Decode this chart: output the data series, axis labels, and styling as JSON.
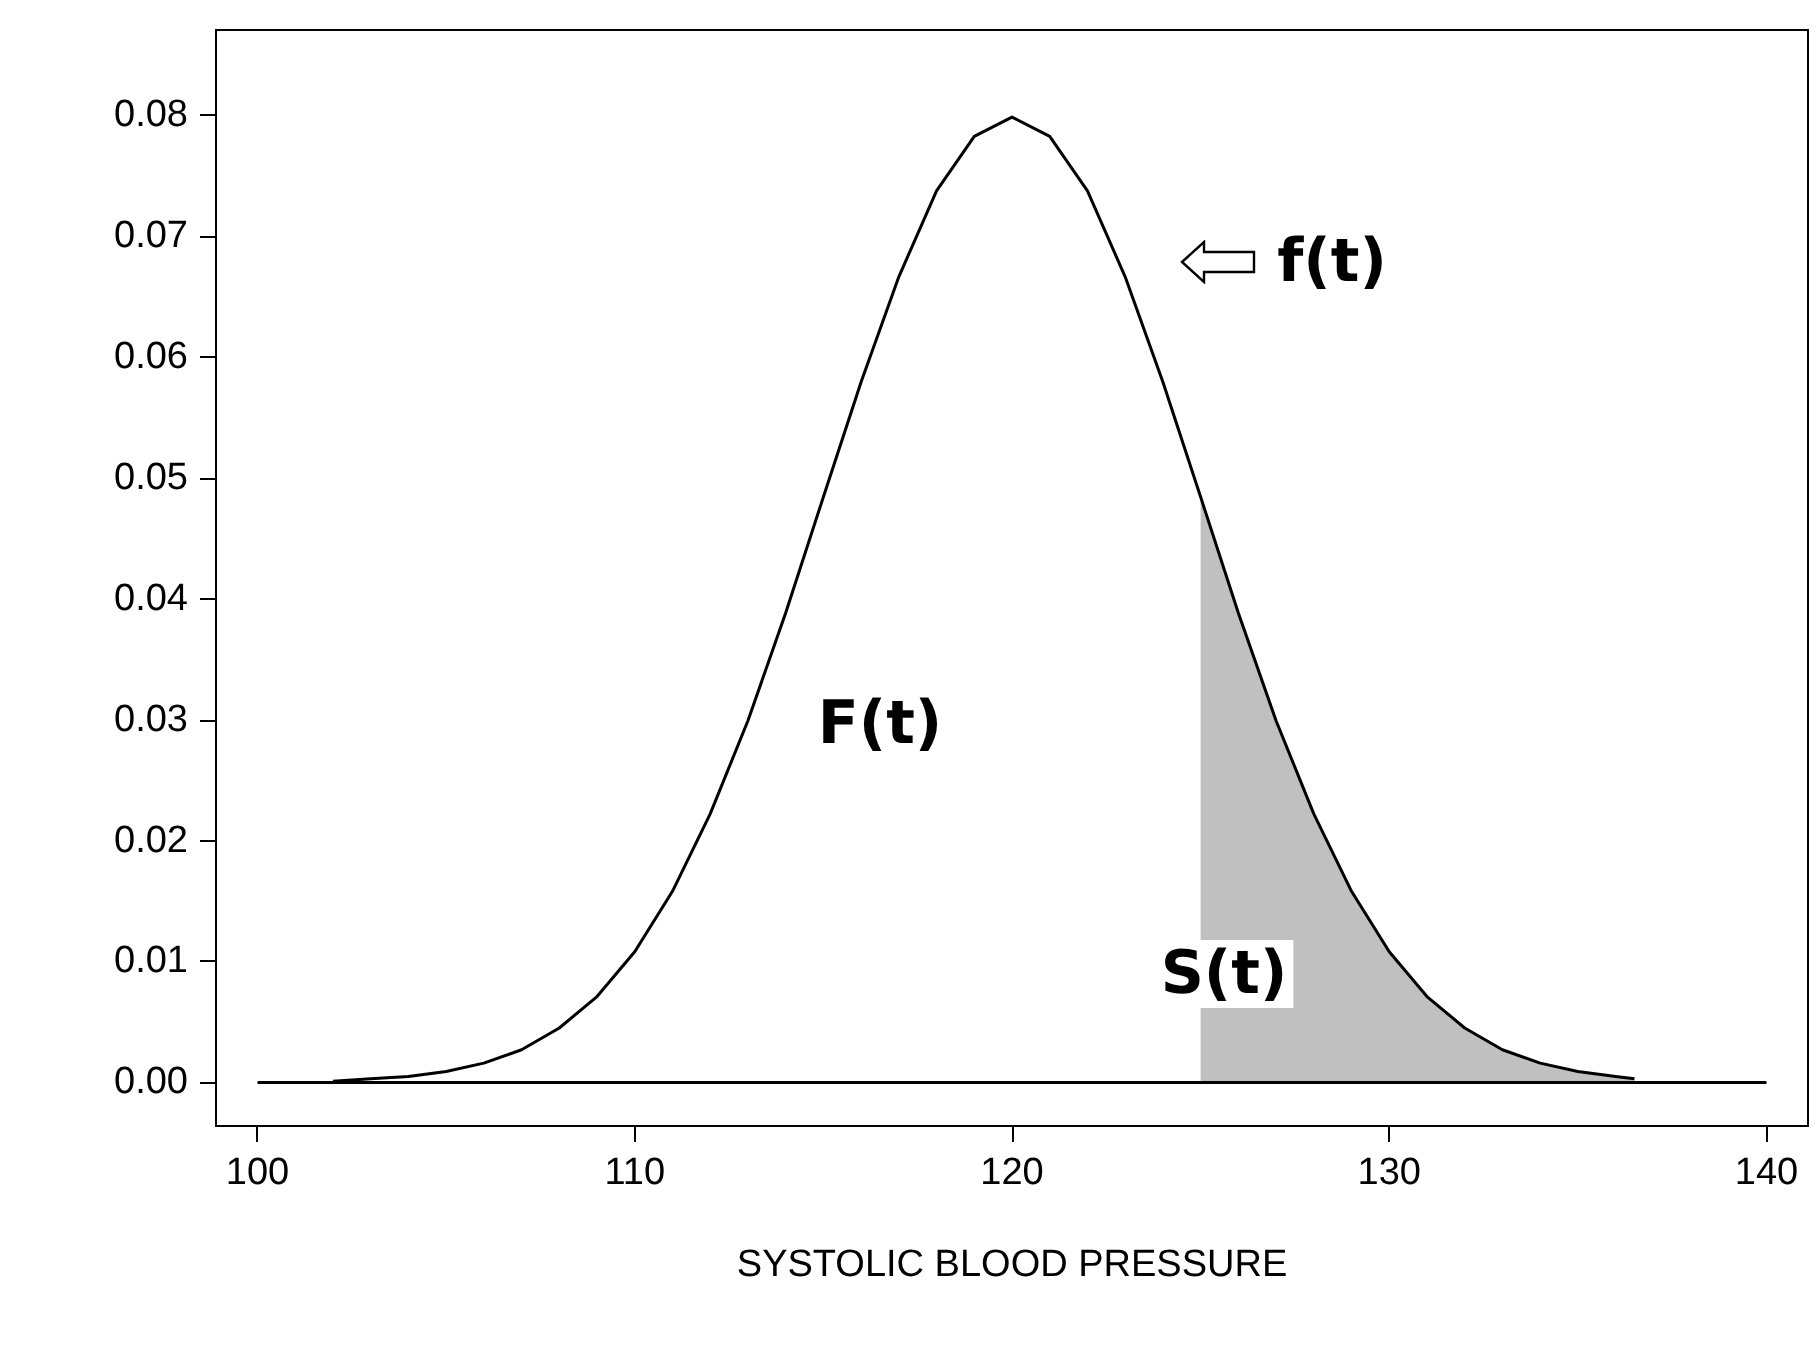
{
  "chart_data": {
    "type": "line",
    "xlabel": "SYSTOLIC BLOOD PRESSURE",
    "xlim": [
      98.9,
      141.1
    ],
    "ylim": [
      -0.0036,
      0.087
    ],
    "xticks": [
      100,
      110,
      120,
      130,
      140
    ],
    "yticks": [
      {
        "value": 0,
        "label": "0.00"
      },
      {
        "value": 0.01,
        "label": "0.01"
      },
      {
        "value": 0.02,
        "label": "0.02"
      },
      {
        "value": 0.03,
        "label": "0.03"
      },
      {
        "value": 0.04,
        "label": "0.04"
      },
      {
        "value": 0.05,
        "label": "0.05"
      },
      {
        "value": 0.06,
        "label": "0.06"
      },
      {
        "value": 0.07,
        "label": "0.07"
      },
      {
        "value": 0.08,
        "label": "0.08"
      }
    ],
    "series": [
      {
        "type": "area",
        "color": "#c0c0c0",
        "x": [
          125,
          125,
          126,
          127,
          128,
          129,
          130,
          131,
          132,
          133,
          134,
          135,
          136,
          136.5
        ],
        "values": [
          0,
          0.0484,
          0.0388,
          0.0299,
          0.0222,
          0.0158,
          0.0108,
          0.0071,
          0.0045,
          0.0027,
          0.0016,
          0.0009,
          0.0005,
          0.0003
        ]
      },
      {
        "color": "#000000",
        "x": [
          100,
          140
        ],
        "values": [
          0,
          0
        ]
      },
      {
        "color": "#000000",
        "x": [
          102,
          103,
          104,
          105,
          106,
          107,
          108,
          109,
          110,
          111,
          112,
          113,
          114,
          115,
          116,
          117,
          118,
          119,
          120,
          121,
          122,
          123,
          124,
          125,
          126,
          127,
          128,
          129,
          130,
          131,
          132,
          133,
          134,
          135,
          136,
          136.5
        ],
        "values": [
          0.0001,
          0.0003,
          0.0005,
          0.0009,
          0.0016,
          0.0027,
          0.0045,
          0.0071,
          0.0108,
          0.0158,
          0.0222,
          0.0299,
          0.0388,
          0.0484,
          0.0579,
          0.0666,
          0.0737,
          0.0782,
          0.0798,
          0.0782,
          0.0737,
          0.0666,
          0.0579,
          0.0484,
          0.0388,
          0.0299,
          0.0222,
          0.0158,
          0.0108,
          0.0071,
          0.0045,
          0.0027,
          0.0016,
          0.0009,
          0.0005,
          0.0003
        ]
      }
    ],
    "annotations": [
      "f(t)",
      "F(t)",
      "S(t)"
    ]
  }
}
